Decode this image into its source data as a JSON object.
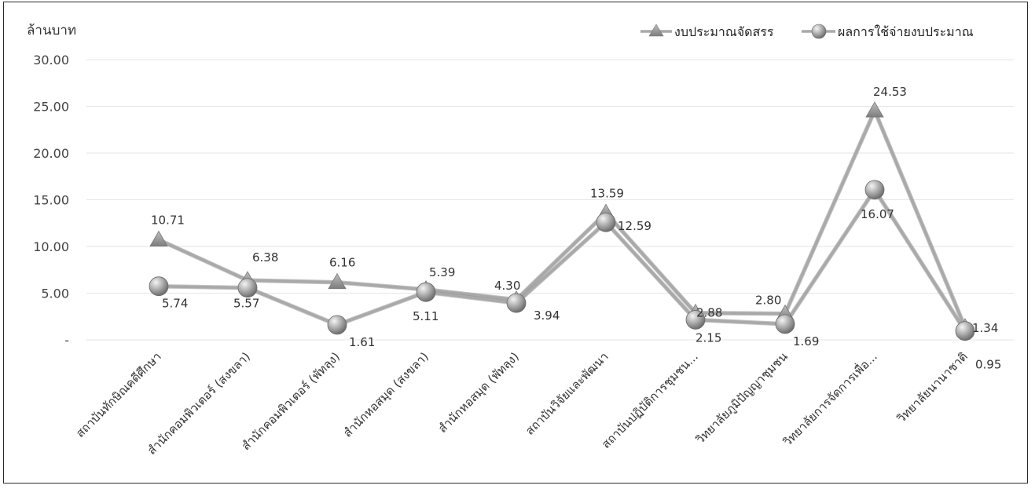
{
  "chart_data": {
    "type": "line",
    "ylabel": "ล้านบาท",
    "xlabel": "",
    "ylim": [
      0,
      30
    ],
    "yticks": [
      "-",
      "5.00",
      "10.00",
      "15.00",
      "20.00",
      "25.00",
      "30.00"
    ],
    "grid": true,
    "legend_position": "top-right",
    "categories": [
      "สถาบันทักษิณคดีศึกษา",
      "สำนักคอมพิวเตอร์ (สงขลา)",
      "สำนักคอมพิวเตอร์ (พัทลุง)",
      "สำนักหอสมุด (สงขลา)",
      "สำนักหอสมุด (พัทลุง)",
      "สถาบันวิจัยและพัฒนา",
      "สถาบันปฏิบัติการชุมชน...",
      "วิทยาลัยภูมิปัญญาชุมชน",
      "วิทยาลัยการจัดการเพื่อ...",
      "วิทยาลัยนานาชาติ"
    ],
    "series": [
      {
        "name": "งบประมาณจัดสรร",
        "marker": "triangle",
        "values": [
          10.71,
          6.38,
          6.16,
          5.39,
          4.3,
          13.59,
          2.88,
          2.8,
          24.53,
          1.34
        ],
        "labels": [
          "10.71",
          "6.38",
          "6.16",
          "5.39",
          "4.30",
          "13.59",
          "2.88",
          "2.80",
          "24.53",
          "1.34"
        ]
      },
      {
        "name": "ผลการใช้จ่ายงบประมาณ",
        "marker": "circle",
        "values": [
          5.74,
          5.57,
          1.61,
          5.11,
          3.94,
          12.59,
          2.15,
          1.69,
          16.07,
          0.95
        ],
        "labels": [
          "5.74",
          "5.57",
          "1.61",
          "5.11",
          "3.94",
          "12.59",
          "2.15",
          "1.69",
          "16.07",
          "0.95"
        ]
      }
    ],
    "colors": {
      "line": "#a9a9a9",
      "marker_fill": "#9c9c9c",
      "grid": "#e6e6e6",
      "text": "#333333"
    }
  }
}
